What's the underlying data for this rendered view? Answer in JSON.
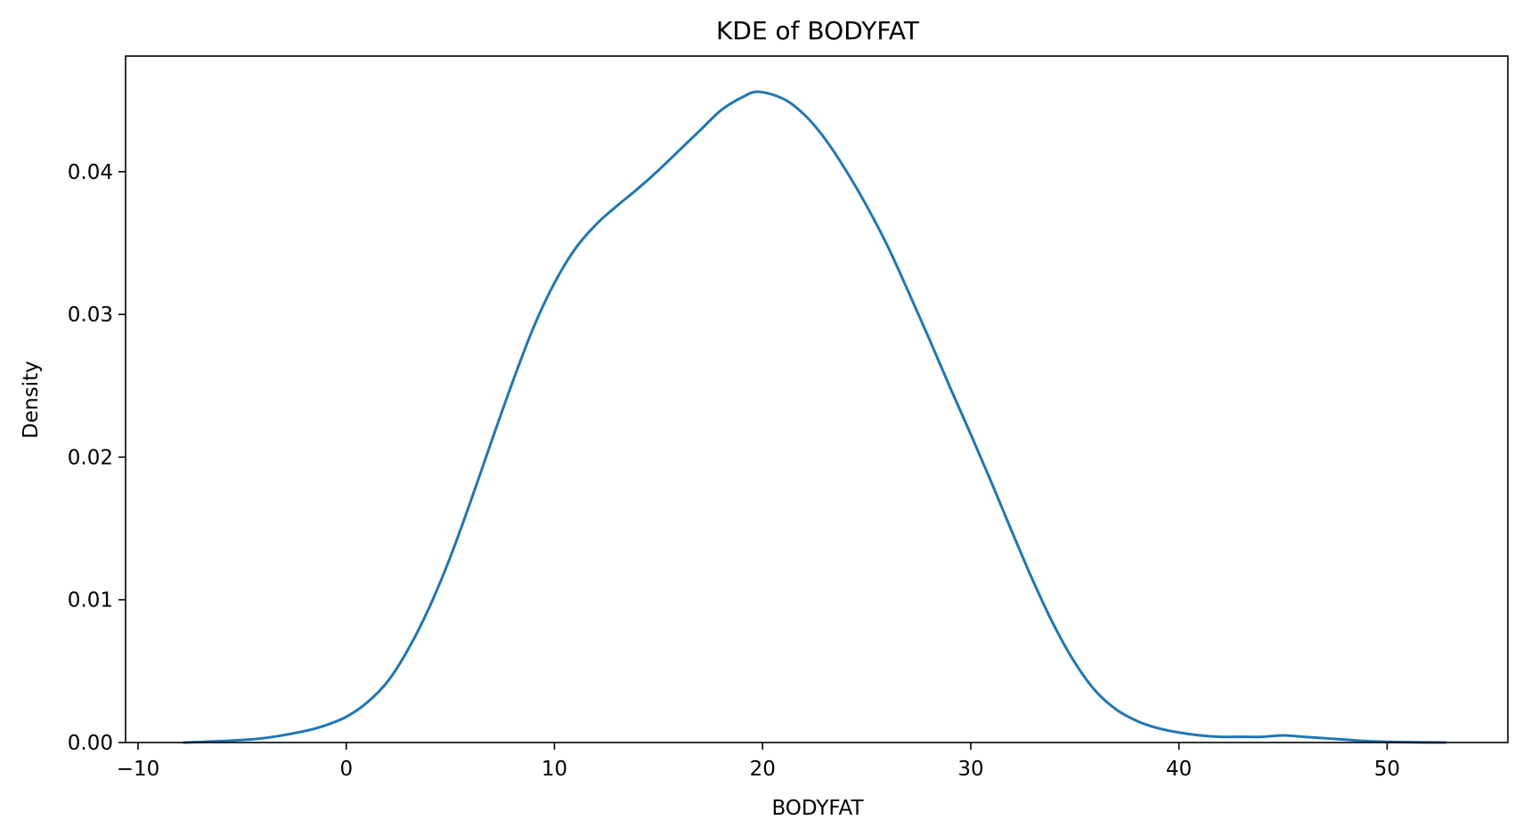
{
  "chart_data": {
    "type": "line",
    "title": "KDE of BODYFAT",
    "xlabel": "BODYFAT",
    "ylabel": "Density",
    "xlim": [
      -10.6,
      55.8
    ],
    "ylim": [
      0,
      0.0481
    ],
    "xticks": [
      -10,
      0,
      10,
      20,
      30,
      40,
      50
    ],
    "xtick_labels": [
      "−10",
      "0",
      "10",
      "20",
      "30",
      "40",
      "50"
    ],
    "yticks": [
      0.0,
      0.01,
      0.02,
      0.03,
      0.04
    ],
    "ytick_labels": [
      "0.00",
      "0.01",
      "0.02",
      "0.03",
      "0.04"
    ],
    "grid": false,
    "legend": "none",
    "line_color": "#1f77b4",
    "series": [
      {
        "x": [
          -7.8,
          -6,
          -4,
          -2,
          -1,
          0,
          1,
          2,
          3,
          4,
          5,
          6,
          7,
          8,
          9,
          10,
          11,
          12,
          13,
          14,
          15,
          16,
          17,
          18,
          19,
          19.8,
          21,
          22,
          23,
          24,
          25,
          26,
          27,
          28,
          29,
          30,
          31,
          32,
          33,
          34,
          35,
          36,
          37,
          38,
          39,
          40,
          41,
          42,
          43,
          44,
          45,
          46,
          47,
          48,
          49,
          50,
          51,
          52.8
        ],
        "y": [
          0.0,
          0.0001,
          0.0003,
          0.0008,
          0.0012,
          0.0018,
          0.0028,
          0.0043,
          0.0066,
          0.0095,
          0.013,
          0.017,
          0.0212,
          0.0253,
          0.0291,
          0.0322,
          0.0346,
          0.0363,
          0.0376,
          0.0388,
          0.0401,
          0.0415,
          0.0429,
          0.0443,
          0.0452,
          0.0456,
          0.0451,
          0.044,
          0.0423,
          0.0401,
          0.0376,
          0.0348,
          0.0316,
          0.0283,
          0.0249,
          0.0216,
          0.0182,
          0.0147,
          0.0113,
          0.0082,
          0.0056,
          0.0036,
          0.0023,
          0.0015,
          0.001,
          0.0007,
          0.0005,
          0.0004,
          0.0004,
          0.0004,
          0.0005,
          0.0004,
          0.0003,
          0.0002,
          0.0001,
          5e-05,
          2e-05,
          0.0
        ]
      }
    ]
  }
}
